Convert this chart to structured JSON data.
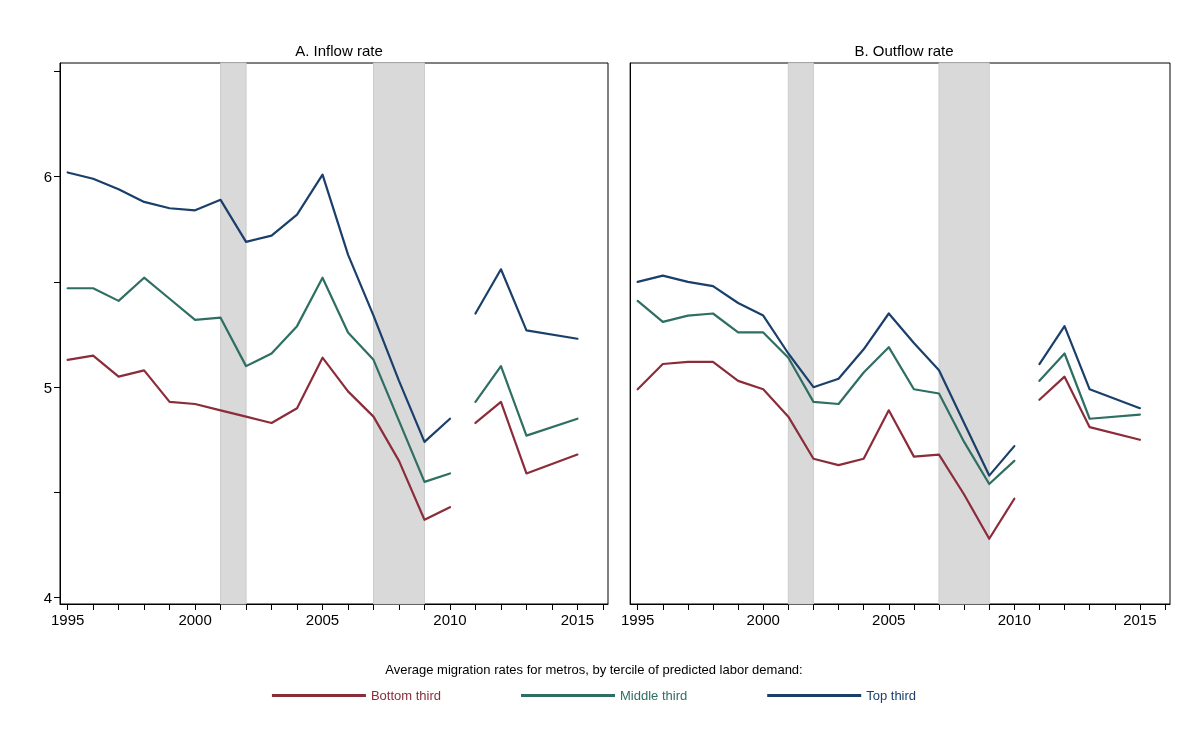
{
  "chart_data": [
    {
      "type": "line",
      "title": "A. Inflow rate",
      "legend_title": "Average migration rates for metros, by tercile of predicted labor demand:",
      "legend": "bottom",
      "x": [
        1995,
        1996,
        1997,
        1998,
        1999,
        2000,
        2001,
        2002,
        2003,
        2004,
        2005,
        2006,
        2007,
        2008,
        2009,
        2010,
        2010.5,
        2011,
        2012,
        2013,
        2015
      ],
      "series": [
        {
          "name": "Bottom third",
          "color": "#8b2c3a",
          "values": [
            5.13,
            5.15,
            5.05,
            5.08,
            4.93,
            4.92,
            4.89,
            4.86,
            4.83,
            4.9,
            5.14,
            4.98,
            4.86,
            4.65,
            4.37,
            4.43,
            null,
            4.83,
            4.93,
            4.59,
            4.68
          ]
        },
        {
          "name": "Middle third",
          "color": "#2e6e63",
          "values": [
            5.47,
            5.47,
            5.41,
            5.52,
            5.42,
            5.32,
            5.33,
            5.1,
            5.16,
            5.29,
            5.52,
            5.26,
            5.13,
            4.84,
            4.55,
            4.59,
            null,
            4.93,
            5.1,
            4.77,
            4.85
          ]
        },
        {
          "name": "Top third",
          "color": "#1a3f6b",
          "values": [
            6.02,
            5.99,
            5.94,
            5.88,
            5.85,
            5.84,
            5.89,
            5.69,
            5.72,
            5.82,
            6.01,
            5.63,
            5.34,
            5.03,
            4.74,
            4.85,
            null,
            5.35,
            5.56,
            5.27,
            5.23
          ]
        }
      ],
      "bands": [
        {
          "axis": "x",
          "from": 2001,
          "to": 2002,
          "color": "#d9d9d9"
        },
        {
          "axis": "x",
          "from": 2007,
          "to": 2009,
          "color": "#d9d9d9"
        }
      ],
      "xlim": [
        1994.7,
        2016.2
      ],
      "ylim": [
        3.97,
        6.54
      ],
      "xticks": [
        1995,
        {
          "value": 1996,
          "label": null
        },
        {
          "value": 1997,
          "label": null
        },
        {
          "value": 1998,
          "label": null
        },
        {
          "value": 1999,
          "label": null
        },
        2000,
        {
          "value": 2001,
          "label": null
        },
        {
          "value": 2002,
          "label": null
        },
        {
          "value": 2003,
          "label": null
        },
        {
          "value": 2004,
          "label": null
        },
        2005,
        {
          "value": 2006,
          "label": null
        },
        {
          "value": 2007,
          "label": null
        },
        {
          "value": 2008,
          "label": null
        },
        {
          "value": 2009,
          "label": null
        },
        2010,
        {
          "value": 2011,
          "label": null
        },
        {
          "value": 2012,
          "label": null
        },
        {
          "value": 2013,
          "label": null
        },
        {
          "value": 2014,
          "label": null
        },
        2015,
        {
          "value": 2016,
          "label": null
        }
      ],
      "yticks": [
        4,
        {
          "value": 4.5,
          "label": null
        },
        5,
        {
          "value": 5.5,
          "label": null
        },
        6,
        {
          "value": 6.5,
          "label": null
        }
      ],
      "grid": false,
      "marker": "none",
      "line_style": "solid"
    },
    {
      "type": "line",
      "title": "B. Outflow rate",
      "x": [
        1995,
        1996,
        1997,
        1998,
        1999,
        2000,
        2001,
        2002,
        2003,
        2004,
        2005,
        2006,
        2007,
        2008,
        2009,
        2010,
        2010.5,
        2011,
        2012,
        2013,
        2015
      ],
      "series": [
        {
          "color": "#8b2c3a",
          "values": [
            4.99,
            5.11,
            5.12,
            5.12,
            5.03,
            4.99,
            4.86,
            4.66,
            4.63,
            4.66,
            4.89,
            4.67,
            4.68,
            4.49,
            4.28,
            4.47,
            null,
            4.94,
            5.05,
            4.81,
            4.75
          ]
        },
        {
          "color": "#2e6e63",
          "values": [
            5.41,
            5.31,
            5.34,
            5.35,
            5.26,
            5.26,
            5.14,
            4.93,
            4.92,
            5.07,
            5.19,
            4.99,
            4.97,
            4.74,
            4.54,
            4.65,
            null,
            5.03,
            5.16,
            4.85,
            4.87
          ]
        },
        {
          "color": "#1a3f6b",
          "values": [
            5.5,
            5.53,
            5.5,
            5.48,
            5.4,
            5.34,
            5.16,
            5.0,
            5.04,
            5.18,
            5.35,
            5.21,
            5.08,
            4.83,
            4.58,
            4.72,
            null,
            5.11,
            5.29,
            4.99,
            4.9
          ]
        }
      ],
      "bands": [
        {
          "axis": "x",
          "from": 2001,
          "to": 2002,
          "color": "#d9d9d9"
        },
        {
          "axis": "x",
          "from": 2007,
          "to": 2009,
          "color": "#d9d9d9"
        }
      ],
      "xlim": [
        1994.7,
        2016.2
      ],
      "ylim": [
        3.97,
        6.54
      ],
      "xticks": [
        1995,
        {
          "value": 1996,
          "label": null
        },
        {
          "value": 1997,
          "label": null
        },
        {
          "value": 1998,
          "label": null
        },
        {
          "value": 1999,
          "label": null
        },
        2000,
        {
          "value": 2001,
          "label": null
        },
        {
          "value": 2002,
          "label": null
        },
        {
          "value": 2003,
          "label": null
        },
        {
          "value": 2004,
          "label": null
        },
        2005,
        {
          "value": 2006,
          "label": null
        },
        {
          "value": 2007,
          "label": null
        },
        {
          "value": 2008,
          "label": null
        },
        {
          "value": 2009,
          "label": null
        },
        2010,
        {
          "value": 2011,
          "label": null
        },
        {
          "value": 2012,
          "label": null
        },
        {
          "value": 2013,
          "label": null
        },
        {
          "value": 2014,
          "label": null
        },
        2015,
        {
          "value": 2016,
          "label": null
        }
      ],
      "tick_labels": "x",
      "grid": false,
      "marker": "none",
      "line_style": "solid"
    }
  ]
}
